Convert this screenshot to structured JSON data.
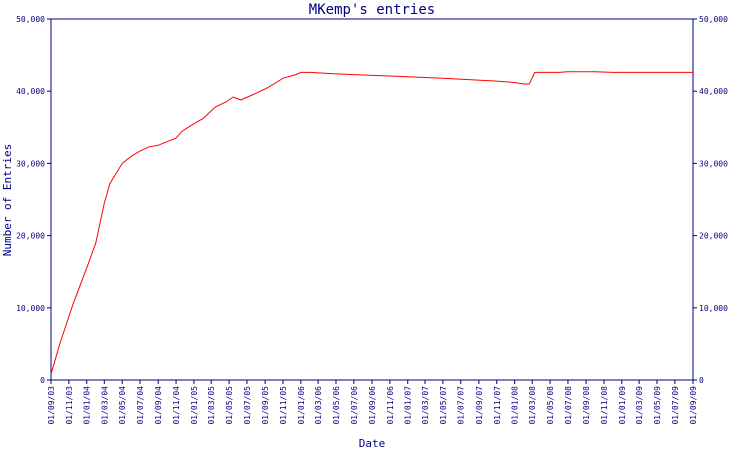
{
  "chart_data": {
    "type": "line",
    "title": "MKemp's entries",
    "xlabel": "Date",
    "ylabel": "Number of Entries",
    "ylim": [
      0,
      50000
    ],
    "yticks": [
      0,
      10000,
      20000,
      30000,
      40000,
      50000
    ],
    "ytick_labels": [
      "0",
      "10,000",
      "20,000",
      "30,000",
      "40,000",
      "50,000"
    ],
    "xlim": [
      "2003-09-01",
      "2009-09-01"
    ],
    "x_tick_labels": [
      "01/09/03",
      "01/11/03",
      "01/01/04",
      "01/03/04",
      "01/05/04",
      "01/07/04",
      "01/09/04",
      "01/11/04",
      "01/01/05",
      "01/03/05",
      "01/05/05",
      "01/07/05",
      "01/09/05",
      "01/11/05",
      "01/01/06",
      "01/03/06",
      "01/05/06",
      "01/07/06",
      "01/09/06",
      "01/11/06",
      "01/01/07",
      "01/03/07",
      "01/05/07",
      "01/07/07",
      "01/09/07",
      "01/11/07",
      "01/01/08",
      "01/03/08",
      "01/05/08",
      "01/07/08",
      "01/09/08",
      "01/11/08",
      "01/01/09",
      "01/03/09",
      "01/05/09",
      "01/07/09",
      "01/09/09"
    ],
    "grid": false,
    "line_color": "#ff0000",
    "axis_color": "#000080",
    "series": [
      {
        "points": [
          [
            "2003-09-01",
            800
          ],
          [
            "2003-10-01",
            5000
          ],
          [
            "2003-11-15",
            10500
          ],
          [
            "2004-01-01",
            15500
          ],
          [
            "2004-02-01",
            19000
          ],
          [
            "2004-03-01",
            24500
          ],
          [
            "2004-03-20",
            27200
          ],
          [
            "2004-05-01",
            30000
          ],
          [
            "2004-06-01",
            31000
          ],
          [
            "2004-07-01",
            31700
          ],
          [
            "2004-08-01",
            32300
          ],
          [
            "2004-09-01",
            32500
          ],
          [
            "2004-10-01",
            33000
          ],
          [
            "2004-11-01",
            33500
          ],
          [
            "2004-11-20",
            34400
          ],
          [
            "2005-01-01",
            35500
          ],
          [
            "2005-02-01",
            36200
          ],
          [
            "2005-03-15",
            37800
          ],
          [
            "2005-04-20",
            38500
          ],
          [
            "2005-05-15",
            39200
          ],
          [
            "2005-06-10",
            38800
          ],
          [
            "2005-07-15",
            39400
          ],
          [
            "2005-09-01",
            40300
          ],
          [
            "2005-10-01",
            41000
          ],
          [
            "2005-11-01",
            41800
          ],
          [
            "2005-12-15",
            42300
          ],
          [
            "2006-01-01",
            42600
          ],
          [
            "2006-02-01",
            42600
          ],
          [
            "2006-05-01",
            42400
          ],
          [
            "2006-11-01",
            42100
          ],
          [
            "2007-05-01",
            41800
          ],
          [
            "2007-11-01",
            41400
          ],
          [
            "2008-01-01",
            41200
          ],
          [
            "2008-02-01",
            41000
          ],
          [
            "2008-02-20",
            41000
          ],
          [
            "2008-03-10",
            42600
          ],
          [
            "2008-06-01",
            42600
          ],
          [
            "2008-07-01",
            42700
          ],
          [
            "2008-10-01",
            42700
          ],
          [
            "2008-12-01",
            42600
          ],
          [
            "2009-05-01",
            42600
          ],
          [
            "2009-09-01",
            42600
          ]
        ]
      }
    ]
  }
}
